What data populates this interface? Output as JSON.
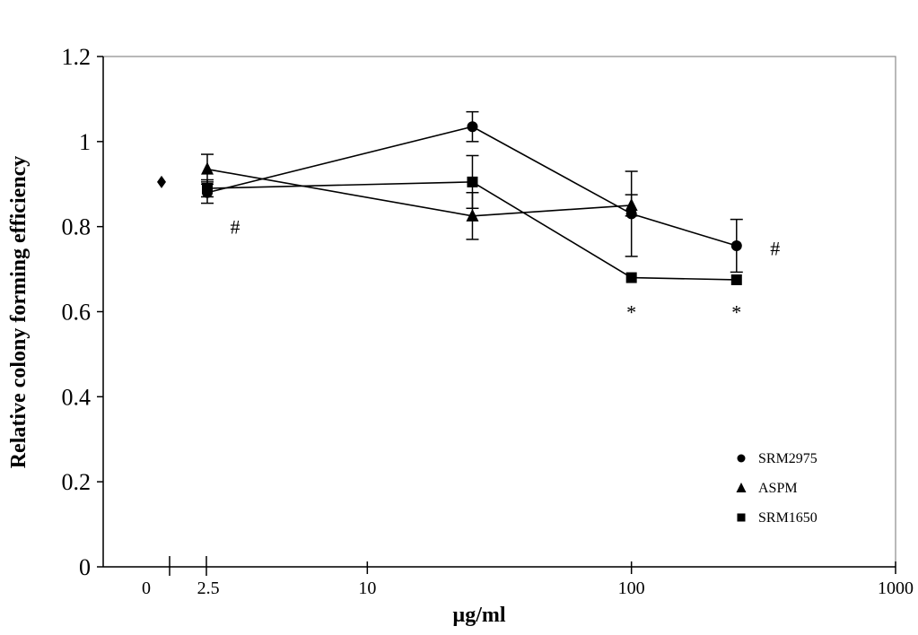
{
  "chart_data": {
    "type": "scatter",
    "title": "",
    "xlabel": "µg/ml",
    "ylabel": "Relative colony forming efficiency",
    "xscale": "log",
    "xlim": [
      1,
      1000
    ],
    "ylim": [
      0,
      1.2
    ],
    "y_ticks": [
      0,
      0.2,
      0.4,
      0.6,
      0.8,
      1,
      1.2
    ],
    "y_tick_labels": [
      "0",
      "0.2",
      "0.4",
      "0.6",
      "0.8",
      "1",
      "1.2"
    ],
    "x_ticks": [
      2.5,
      10,
      100,
      1000
    ],
    "x_tick_labels": [
      "2.5",
      "10",
      "100",
      "1000"
    ],
    "x_zero_label": "0",
    "axis_break": true,
    "grid": false,
    "legend_position": "bottom-right",
    "control": {
      "x": 0,
      "y": 0.905,
      "marker": "diamond"
    },
    "series": [
      {
        "name": "SRM2975",
        "marker": "circle",
        "x": [
          2.5,
          25,
          100,
          250
        ],
        "y": [
          0.88,
          1.035,
          0.83,
          0.755
        ],
        "err": [
          0.025,
          0.035,
          0.1,
          0.062
        ]
      },
      {
        "name": "ASPM",
        "marker": "triangle",
        "x": [
          2.5,
          25,
          100,
          250
        ],
        "y": [
          0.935,
          0.825,
          0.85,
          null
        ],
        "err": [
          0.035,
          0.055,
          0.025,
          null
        ]
      },
      {
        "name": "SRM1650",
        "marker": "square",
        "x": [
          2.5,
          25,
          100,
          250
        ],
        "y": [
          0.89,
          0.905,
          0.68,
          0.675
        ],
        "err": [
          0.02,
          0.062,
          0.0,
          0.0
        ]
      }
    ],
    "annotations": [
      {
        "text": "#",
        "x": 3.5,
        "y": 0.8
      },
      {
        "text": "#",
        "x": 350,
        "y": 0.75
      },
      {
        "text": "*",
        "x": 100,
        "y": 0.6
      },
      {
        "text": "*",
        "x": 250,
        "y": 0.6
      }
    ]
  }
}
